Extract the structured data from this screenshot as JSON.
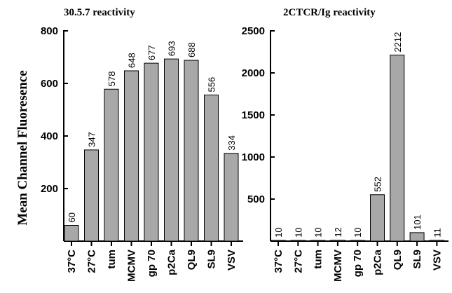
{
  "y_axis_label": "Mean Channel Fluoresence",
  "bar_color": "#a8a8a8",
  "chart_data": [
    {
      "type": "bar",
      "title": "30.5.7 reactivity",
      "categories": [
        "37°C",
        "27°C",
        "tum",
        "MCMV",
        "gp 70",
        "p2Ca",
        "QL9",
        "SL9",
        "VSV"
      ],
      "values": [
        60,
        347,
        578,
        648,
        677,
        693,
        688,
        556,
        334
      ],
      "ylim": [
        0,
        800
      ],
      "yticks": [
        200,
        400,
        600,
        800
      ],
      "ylabel": "Mean Channel Fluoresence",
      "xlabel": "",
      "grid": false
    },
    {
      "type": "bar",
      "title": "2CTCR/Ig reactivity",
      "categories": [
        "37°C",
        "27°C",
        "tum",
        "MCMV",
        "gp 70",
        "p2Ca",
        "QL9",
        "SL9",
        "VSV"
      ],
      "values": [
        10,
        10,
        10,
        12,
        10,
        552,
        2212,
        101,
        11
      ],
      "ylim": [
        0,
        2500
      ],
      "yticks": [
        500,
        1000,
        1500,
        2000,
        2500
      ],
      "ylabel": "",
      "xlabel": "",
      "grid": false
    }
  ]
}
